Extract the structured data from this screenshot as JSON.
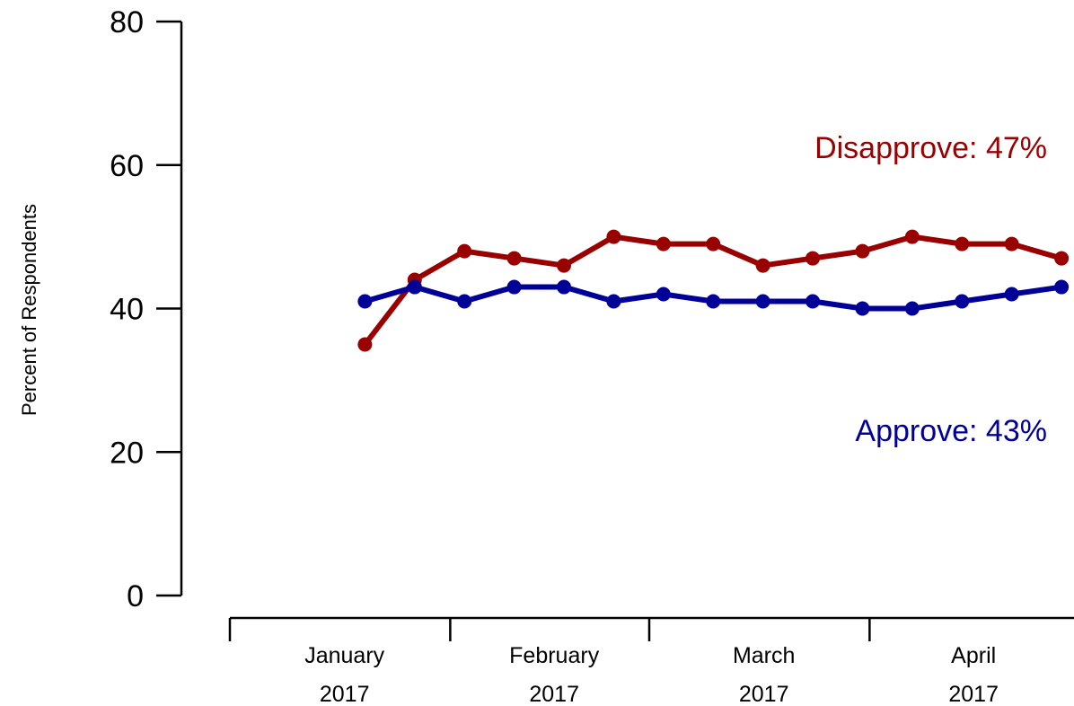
{
  "chart_data": {
    "type": "line",
    "ylabel": "Percent of Respondents",
    "ylim": [
      0,
      80
    ],
    "yticks": [
      0,
      20,
      40,
      60,
      80
    ],
    "x": [
      "2017-01-20",
      "2017-01-27",
      "2017-02-03",
      "2017-02-10",
      "2017-02-17",
      "2017-02-24",
      "2017-03-03",
      "2017-03-10",
      "2017-03-17",
      "2017-03-24",
      "2017-03-31",
      "2017-04-07",
      "2017-04-14",
      "2017-04-21",
      "2017-04-28"
    ],
    "xlim": [
      "2017-01-01",
      "2017-04-29"
    ],
    "month_ticks": [
      "2017-01-01",
      "2017-02-01",
      "2017-03-01",
      "2017-04-01"
    ],
    "month_labels": [
      {
        "month": "January",
        "year": "2017"
      },
      {
        "month": "February",
        "year": "2017"
      },
      {
        "month": "March",
        "year": "2017"
      },
      {
        "month": "April",
        "year": "2017"
      }
    ],
    "series": [
      {
        "name": "Disapprove",
        "label": "Disapprove: 47%",
        "color": "#990000",
        "values": [
          35,
          44,
          48,
          47,
          46,
          50,
          49,
          49,
          46,
          47,
          48,
          50,
          49,
          49,
          47
        ]
      },
      {
        "name": "Approve",
        "label": "Approve: 43%",
        "color": "#000099",
        "values": [
          41,
          43,
          41,
          43,
          43,
          41,
          42,
          41,
          41,
          41,
          40,
          40,
          41,
          42,
          43
        ]
      }
    ]
  }
}
